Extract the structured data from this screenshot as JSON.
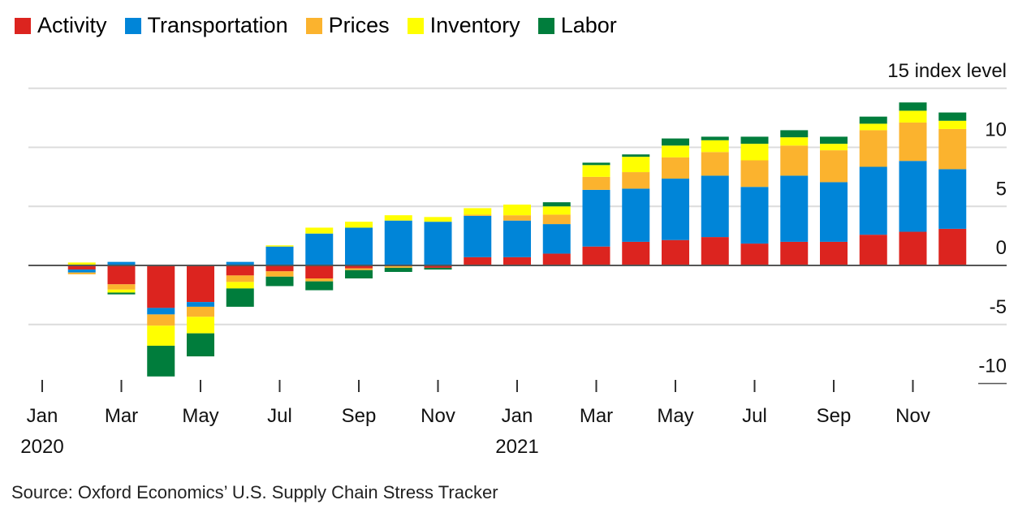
{
  "chart_data": {
    "type": "bar",
    "stacked": true,
    "title": "",
    "ylabel": "index level",
    "ylim": [
      -10,
      15
    ],
    "yticks": [
      15,
      10,
      5,
      0,
      -5,
      -10
    ],
    "ytick_labels": [
      "15 index level",
      "10",
      "5",
      "0",
      "-5",
      "-10"
    ],
    "grid": true,
    "legend": "top-left",
    "categories": [
      "Feb 2020",
      "Mar 2020",
      "Apr 2020",
      "May 2020",
      "Jun 2020",
      "Jul 2020",
      "Aug 2020",
      "Sep 2020",
      "Oct 2020",
      "Nov 2020",
      "Dec 2020",
      "Jan 2021",
      "Feb 2021",
      "Mar 2021",
      "Apr 2021",
      "May 2021",
      "Jun 2021",
      "Jul 2021",
      "Aug 2021",
      "Sep 2021",
      "Oct 2021",
      "Nov 2021",
      "Dec 2021"
    ],
    "xtick_labels": [
      {
        "month": "Jan",
        "year": "2020"
      },
      {
        "month": "Mar"
      },
      {
        "month": "May"
      },
      {
        "month": "Jul"
      },
      {
        "month": "Sep"
      },
      {
        "month": "Nov"
      },
      {
        "month": "Jan",
        "year": "2021"
      },
      {
        "month": "Mar"
      },
      {
        "month": "May"
      },
      {
        "month": "Jul"
      },
      {
        "month": "Sep"
      },
      {
        "month": "Nov"
      }
    ],
    "series": [
      {
        "name": "Activity",
        "color": "#dc241f",
        "values": [
          -0.35,
          -1.6,
          -3.6,
          -3.1,
          -0.85,
          -0.5,
          -1.1,
          -0.25,
          0,
          -0.2,
          0.7,
          0.7,
          1.0,
          1.6,
          2.0,
          2.15,
          2.4,
          1.85,
          2.0,
          2.0,
          2.6,
          2.85,
          3.1
        ]
      },
      {
        "name": "Transportation",
        "color": "#0085d8",
        "values": [
          -0.25,
          0.3,
          -0.55,
          -0.4,
          0.3,
          1.6,
          2.7,
          3.2,
          3.8,
          3.7,
          3.5,
          3.1,
          2.5,
          4.8,
          4.5,
          5.2,
          5.2,
          4.8,
          5.6,
          5.05,
          5.75,
          6.0,
          5.05
        ]
      },
      {
        "name": "Prices",
        "color": "#fbb32e",
        "values": [
          -0.15,
          -0.45,
          -0.95,
          -0.85,
          -0.55,
          -0.45,
          -0.25,
          -0.15,
          -0.2,
          0,
          0.1,
          0.45,
          0.8,
          1.1,
          1.4,
          1.8,
          2.0,
          2.25,
          2.55,
          2.7,
          3.1,
          3.25,
          3.4
        ]
      },
      {
        "name": "Inventory",
        "color": "#ffff00",
        "values": [
          0.25,
          -0.25,
          -1.7,
          -1.4,
          -0.55,
          0.1,
          0.5,
          0.5,
          0.45,
          0.4,
          0.55,
          0.9,
          0.7,
          1.0,
          1.3,
          1.0,
          1.0,
          1.4,
          0.7,
          0.55,
          0.55,
          1.0,
          0.7
        ]
      },
      {
        "name": "Labor",
        "color": "#007d3c",
        "values": [
          0,
          -0.15,
          -2.6,
          -1.95,
          -1.55,
          -0.8,
          -0.75,
          -0.7,
          -0.35,
          -0.15,
          0,
          0,
          0.35,
          0.2,
          0.2,
          0.6,
          0.3,
          0.6,
          0.6,
          0.6,
          0.6,
          0.7,
          0.7
        ]
      }
    ]
  },
  "source": "Source: Oxford Economics’ U.S. Supply Chain Stress Tracker"
}
